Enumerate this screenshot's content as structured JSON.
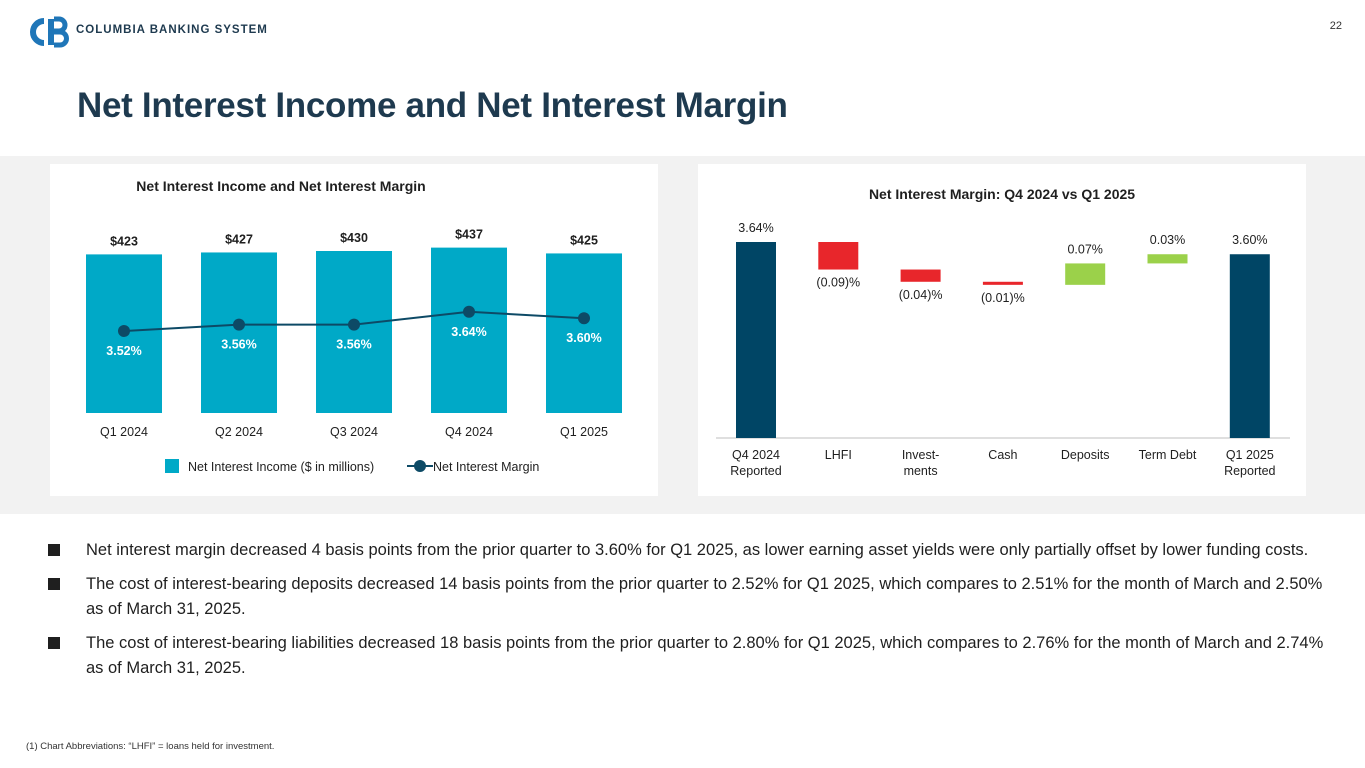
{
  "header": {
    "logo_text": "COLUMBIA BANKING SYSTEM",
    "page_number": "22",
    "title": "Net Interest Income and Net Interest Margin"
  },
  "colors": {
    "bar_teal": "#00a9c7",
    "line_navy": "#0d4a66",
    "waterfall_navy": "#004565",
    "decrease_red": "#e8262b",
    "increase_green": "#9bd14a",
    "brand_blue": "#1f76b8"
  },
  "chart_data": [
    {
      "type": "bar",
      "title": "Net Interest Income and Net Interest Margin",
      "categories": [
        "Q1 2024",
        "Q2 2024",
        "Q3 2024",
        "Q4 2024",
        "Q1 2025"
      ],
      "series": [
        {
          "name": "Net Interest Income ($ in millions)",
          "kind": "bar",
          "values": [
            423,
            427,
            430,
            437,
            425
          ],
          "labels": [
            "$423",
            "$427",
            "$430",
            "$437",
            "$425"
          ]
        },
        {
          "name": "Net Interest Margin",
          "kind": "line",
          "values": [
            3.52,
            3.56,
            3.56,
            3.64,
            3.6
          ],
          "labels": [
            "3.52%",
            "3.56%",
            "3.56%",
            "3.64%",
            "3.60%"
          ]
        }
      ],
      "legend": [
        "Net Interest Income ($ in millions)",
        "Net Interest Margin"
      ],
      "legend_position": "bottom"
    },
    {
      "type": "waterfall",
      "title": "Net Interest Margin: Q4 2024 vs Q1 2025",
      "categories": [
        [
          "Q4 2024",
          "Reported"
        ],
        [
          "LHFI"
        ],
        [
          "Invest-",
          "ments"
        ],
        [
          "Cash"
        ],
        [
          "Deposits"
        ],
        [
          "Term Debt"
        ],
        [
          "Q1 2025",
          "Reported"
        ]
      ],
      "steps": [
        {
          "kind": "total",
          "value": 3.64,
          "label": "3.64%"
        },
        {
          "kind": "delta",
          "value": -0.09,
          "label": "(0.09)%"
        },
        {
          "kind": "delta",
          "value": -0.04,
          "label": "(0.04)%"
        },
        {
          "kind": "delta",
          "value": -0.01,
          "label": "(0.01)%"
        },
        {
          "kind": "delta",
          "value": 0.07,
          "label": "0.07%"
        },
        {
          "kind": "delta",
          "value": 0.03,
          "label": "0.03%"
        },
        {
          "kind": "total",
          "value": 3.6,
          "label": "3.60%"
        }
      ]
    }
  ],
  "bullets": [
    "Net interest margin decreased 4 basis points from the prior quarter to 3.60% for Q1 2025, as lower earning asset yields were only partially offset by lower funding costs.",
    "The cost of interest-bearing deposits decreased 14 basis points from the prior quarter to 2.52% for Q1 2025, which compares to 2.51% for the month of March and 2.50% as of March 31, 2025.",
    "The cost of interest-bearing liabilities decreased 18 basis points from the prior quarter to 2.80% for Q1 2025, which compares to 2.76% for the month of March and 2.74% as of March 31, 2025."
  ],
  "footnote": "(1)  Chart Abbreviations: “LHFI” = loans held for investment."
}
